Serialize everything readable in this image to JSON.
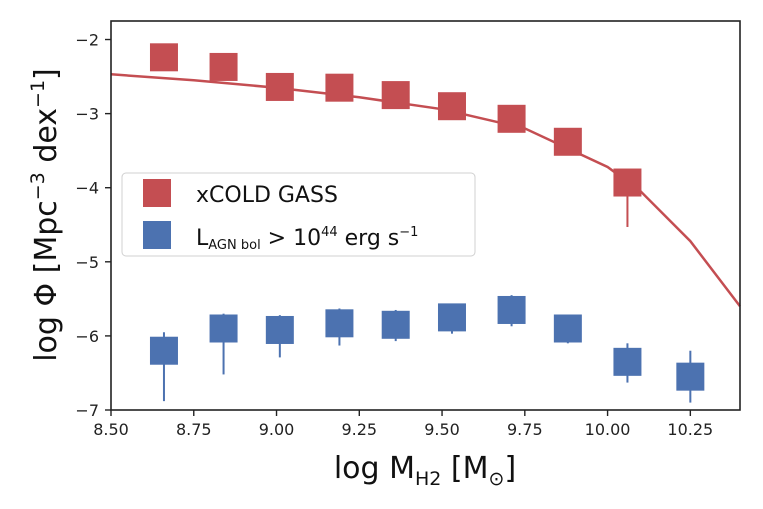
{
  "chart_data": {
    "type": "scatter",
    "xlabel": "log M",
    "xlabel_sub": "H2",
    "xlabel_unit_open": " [M",
    "xlabel_unit_sub": "⊙",
    "xlabel_unit_close": "]",
    "ylabel": "log Φ [Mpc",
    "ylabel_sup1": "−3",
    "ylabel_mid": " dex",
    "ylabel_sup2": "−1",
    "ylabel_close": "]",
    "xlim": [
      8.5,
      10.4
    ],
    "ylim": [
      -7.0,
      -1.75
    ],
    "xticks": [
      "8.50",
      "8.75",
      "9.00",
      "9.25",
      "9.50",
      "9.75",
      "10.00",
      "10.25"
    ],
    "xtick_values": [
      8.5,
      8.75,
      9.0,
      9.25,
      9.5,
      9.75,
      10.0,
      10.25
    ],
    "yticks": [
      "−2",
      "−3",
      "−4",
      "−5",
      "−6",
      "−7"
    ],
    "ytick_values": [
      -2,
      -3,
      -4,
      -5,
      -6,
      -7
    ],
    "grid": false,
    "legend_position": "center-left",
    "series": [
      {
        "name": "xCOLD GASS",
        "color": "#c44e52",
        "marker": "square",
        "x": [
          8.66,
          8.84,
          9.01,
          9.19,
          9.36,
          9.53,
          9.71,
          9.88,
          10.06
        ],
        "y": [
          -2.24,
          -2.37,
          -2.64,
          -2.65,
          -2.75,
          -2.9,
          -3.07,
          -3.38,
          -3.93
        ],
        "yerr_low": [
          0.0,
          0.0,
          0.0,
          0.0,
          0.0,
          0.0,
          0.0,
          0.0,
          0.6
        ],
        "yerr_high": [
          0.0,
          0.0,
          0.0,
          0.0,
          0.0,
          0.0,
          0.0,
          0.0,
          0.0
        ]
      },
      {
        "name_prefix": "L",
        "name_sub": "AGN bol",
        "name_mid": " > 10",
        "name_sup1": "44",
        "name_unit": " erg s",
        "name_sup2": "−1",
        "color": "#4c72b0",
        "marker": "square",
        "x": [
          8.66,
          8.84,
          9.01,
          9.19,
          9.36,
          9.53,
          9.71,
          9.88,
          10.06,
          10.25
        ],
        "y": [
          -6.2,
          -5.9,
          -5.92,
          -5.83,
          -5.85,
          -5.75,
          -5.65,
          -5.9,
          -6.35,
          -6.55
        ],
        "yerr_low": [
          0.68,
          0.62,
          0.37,
          0.3,
          0.22,
          0.22,
          0.22,
          0.2,
          0.28,
          0.35
        ],
        "yerr_high": [
          0.25,
          0.2,
          0.2,
          0.2,
          0.2,
          0.18,
          0.2,
          0.18,
          0.25,
          0.35
        ]
      }
    ],
    "fit_line": {
      "color": "#c44e52",
      "x": [
        8.5,
        8.75,
        9.0,
        9.25,
        9.5,
        9.75,
        10.0,
        10.1,
        10.25,
        10.4
      ],
      "y": [
        -2.47,
        -2.55,
        -2.65,
        -2.78,
        -2.94,
        -3.2,
        -3.72,
        -4.05,
        -4.72,
        -5.6
      ]
    }
  }
}
